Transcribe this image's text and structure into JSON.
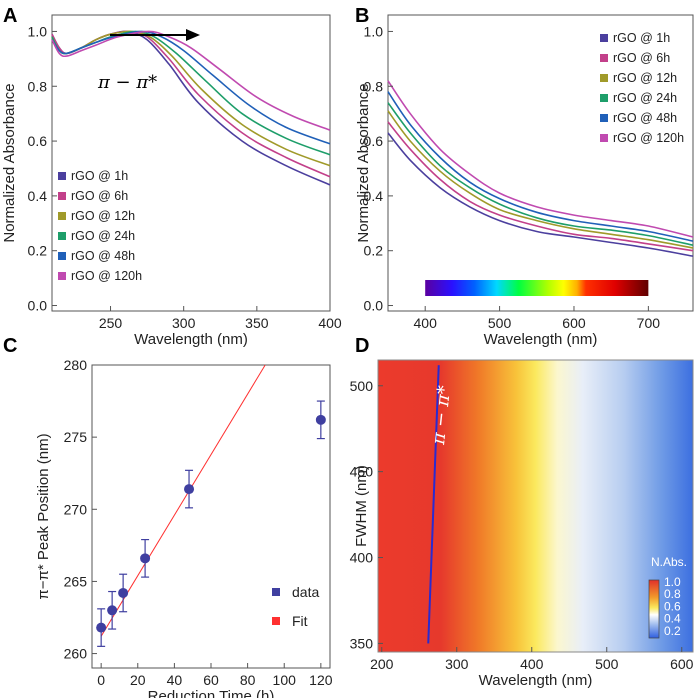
{
  "chart_data": [
    {
      "panel": "A",
      "type": "line",
      "xlabel": "Wavelength (nm)",
      "ylabel": "Normalized Absorbance",
      "xlim": [
        210,
        400
      ],
      "ylim": [
        -0.02,
        1.06
      ],
      "xticks": [
        "250",
        "300",
        "350",
        "400"
      ],
      "yticks": [
        "0.0",
        "0.2",
        "0.4",
        "0.6",
        "0.8",
        "1.0"
      ],
      "annotation": "π − π*",
      "series": [
        {
          "name": "rGO @ 1h",
          "color": "#4b3f9e",
          "x": [
            210,
            215,
            220,
            230,
            240,
            250,
            262,
            275,
            290,
            310,
            340,
            370,
            400
          ],
          "y": [
            0.99,
            0.94,
            0.92,
            0.94,
            0.97,
            0.99,
            1.0,
            0.97,
            0.88,
            0.74,
            0.6,
            0.51,
            0.44
          ]
        },
        {
          "name": "rGO @ 6h",
          "color": "#c2408a",
          "x": [
            210,
            215,
            220,
            230,
            240,
            250,
            263,
            275,
            290,
            310,
            340,
            370,
            400
          ],
          "y": [
            0.99,
            0.94,
            0.92,
            0.94,
            0.97,
            0.99,
            1.0,
            0.98,
            0.9,
            0.77,
            0.63,
            0.54,
            0.47
          ]
        },
        {
          "name": "rGO @ 12h",
          "color": "#a09a2a",
          "x": [
            210,
            215,
            220,
            230,
            240,
            250,
            264,
            277,
            292,
            312,
            340,
            370,
            400
          ],
          "y": [
            0.98,
            0.93,
            0.92,
            0.94,
            0.97,
            0.99,
            1.0,
            0.98,
            0.91,
            0.79,
            0.66,
            0.57,
            0.51
          ]
        },
        {
          "name": "rGO @ 24h",
          "color": "#1e9e6a",
          "x": [
            210,
            215,
            220,
            230,
            240,
            250,
            267,
            280,
            295,
            315,
            340,
            370,
            400
          ],
          "y": [
            0.98,
            0.93,
            0.92,
            0.94,
            0.96,
            0.98,
            1.0,
            0.98,
            0.92,
            0.82,
            0.7,
            0.61,
            0.55
          ]
        },
        {
          "name": "rGO @ 48h",
          "color": "#2060b8",
          "x": [
            210,
            215,
            220,
            230,
            240,
            252,
            271,
            285,
            300,
            320,
            345,
            370,
            400
          ],
          "y": [
            0.97,
            0.93,
            0.92,
            0.94,
            0.96,
            0.98,
            1.0,
            0.98,
            0.93,
            0.84,
            0.73,
            0.65,
            0.59
          ]
        },
        {
          "name": "rGO @ 120h",
          "color": "#c04ab0",
          "x": [
            210,
            215,
            220,
            230,
            240,
            255,
            276,
            290,
            305,
            325,
            350,
            375,
            400
          ],
          "y": [
            0.97,
            0.92,
            0.91,
            0.93,
            0.95,
            0.98,
            1.0,
            0.98,
            0.94,
            0.86,
            0.76,
            0.69,
            0.64
          ]
        }
      ]
    },
    {
      "panel": "B",
      "type": "line",
      "xlabel": "Wavelength (nm)",
      "ylabel": "Normalized Absorbance",
      "xlim": [
        350,
        760
      ],
      "ylim": [
        -0.02,
        1.06
      ],
      "xticks": [
        "400",
        "500",
        "600",
        "700"
      ],
      "yticks": [
        "0.0",
        "0.2",
        "0.4",
        "0.6",
        "0.8",
        "1.0"
      ],
      "spectrum_bar_range": [
        400,
        700
      ],
      "series": [
        {
          "name": "rGO @ 1h",
          "color": "#4b3f9e",
          "x": [
            350,
            380,
            420,
            460,
            500,
            550,
            600,
            650,
            700,
            760
          ],
          "y": [
            0.63,
            0.53,
            0.43,
            0.36,
            0.31,
            0.27,
            0.25,
            0.23,
            0.21,
            0.18
          ]
        },
        {
          "name": "rGO @ 6h",
          "color": "#c2408a",
          "x": [
            350,
            380,
            420,
            460,
            500,
            550,
            600,
            650,
            700,
            760
          ],
          "y": [
            0.67,
            0.57,
            0.46,
            0.38,
            0.33,
            0.29,
            0.26,
            0.245,
            0.225,
            0.2
          ]
        },
        {
          "name": "rGO @ 12h",
          "color": "#a09a2a",
          "x": [
            350,
            380,
            420,
            460,
            500,
            550,
            600,
            650,
            700,
            760
          ],
          "y": [
            0.71,
            0.6,
            0.49,
            0.41,
            0.35,
            0.31,
            0.28,
            0.26,
            0.24,
            0.21
          ]
        },
        {
          "name": "rGO @ 24h",
          "color": "#1e9e6a",
          "x": [
            350,
            380,
            420,
            460,
            500,
            550,
            600,
            650,
            700,
            760
          ],
          "y": [
            0.74,
            0.63,
            0.51,
            0.43,
            0.37,
            0.32,
            0.29,
            0.275,
            0.255,
            0.22
          ]
        },
        {
          "name": "rGO @ 48h",
          "color": "#2060b8",
          "x": [
            350,
            380,
            420,
            460,
            500,
            550,
            600,
            650,
            700,
            760
          ],
          "y": [
            0.78,
            0.66,
            0.54,
            0.45,
            0.39,
            0.34,
            0.31,
            0.29,
            0.27,
            0.235
          ]
        },
        {
          "name": "rGO @ 120h",
          "color": "#c04ab0",
          "x": [
            350,
            380,
            420,
            460,
            500,
            550,
            600,
            650,
            700,
            760
          ],
          "y": [
            0.82,
            0.7,
            0.57,
            0.48,
            0.41,
            0.36,
            0.33,
            0.31,
            0.29,
            0.25
          ]
        }
      ]
    },
    {
      "panel": "C",
      "type": "scatter",
      "xlabel": "Reduction Time (h)",
      "ylabel": "π−π* Peak Position (nm)",
      "xlim": [
        -5,
        125
      ],
      "ylim": [
        259,
        280
      ],
      "xticks": [
        "0",
        "20",
        "40",
        "60",
        "80",
        "100",
        "120"
      ],
      "yticks": [
        "260",
        "265",
        "270",
        "275",
        "280"
      ],
      "data": {
        "name": "data",
        "color": "#3f3fa0",
        "x": [
          0,
          6,
          12,
          24,
          48,
          120
        ],
        "y": [
          261.8,
          263.0,
          264.2,
          266.6,
          271.4,
          276.2
        ],
        "err": [
          1.3,
          1.3,
          1.3,
          1.3,
          1.3,
          1.3
        ]
      },
      "fit": {
        "name": "Fit",
        "color": "#ff3030",
        "x": [
          0,
          89.6
        ],
        "y": [
          261.2,
          280
        ]
      }
    },
    {
      "panel": "D",
      "type": "heatmap",
      "xlabel": "Wavelength (nm)",
      "ylabel": "FWHM (nm)",
      "xlim": [
        195,
        615
      ],
      "ylim": [
        345,
        515
      ],
      "xticks": [
        "200",
        "300",
        "400",
        "500",
        "600"
      ],
      "yticks": [
        "350",
        "400",
        "450",
        "500"
      ],
      "colorbar_title": "N.Abs.",
      "colorbar_ticks": [
        "1.0",
        "0.8",
        "0.6",
        "0.4",
        "0.2"
      ],
      "annotation": "π − π*",
      "peak_line": {
        "x": [
          262,
          276
        ],
        "y": [
          350,
          512
        ]
      }
    }
  ]
}
